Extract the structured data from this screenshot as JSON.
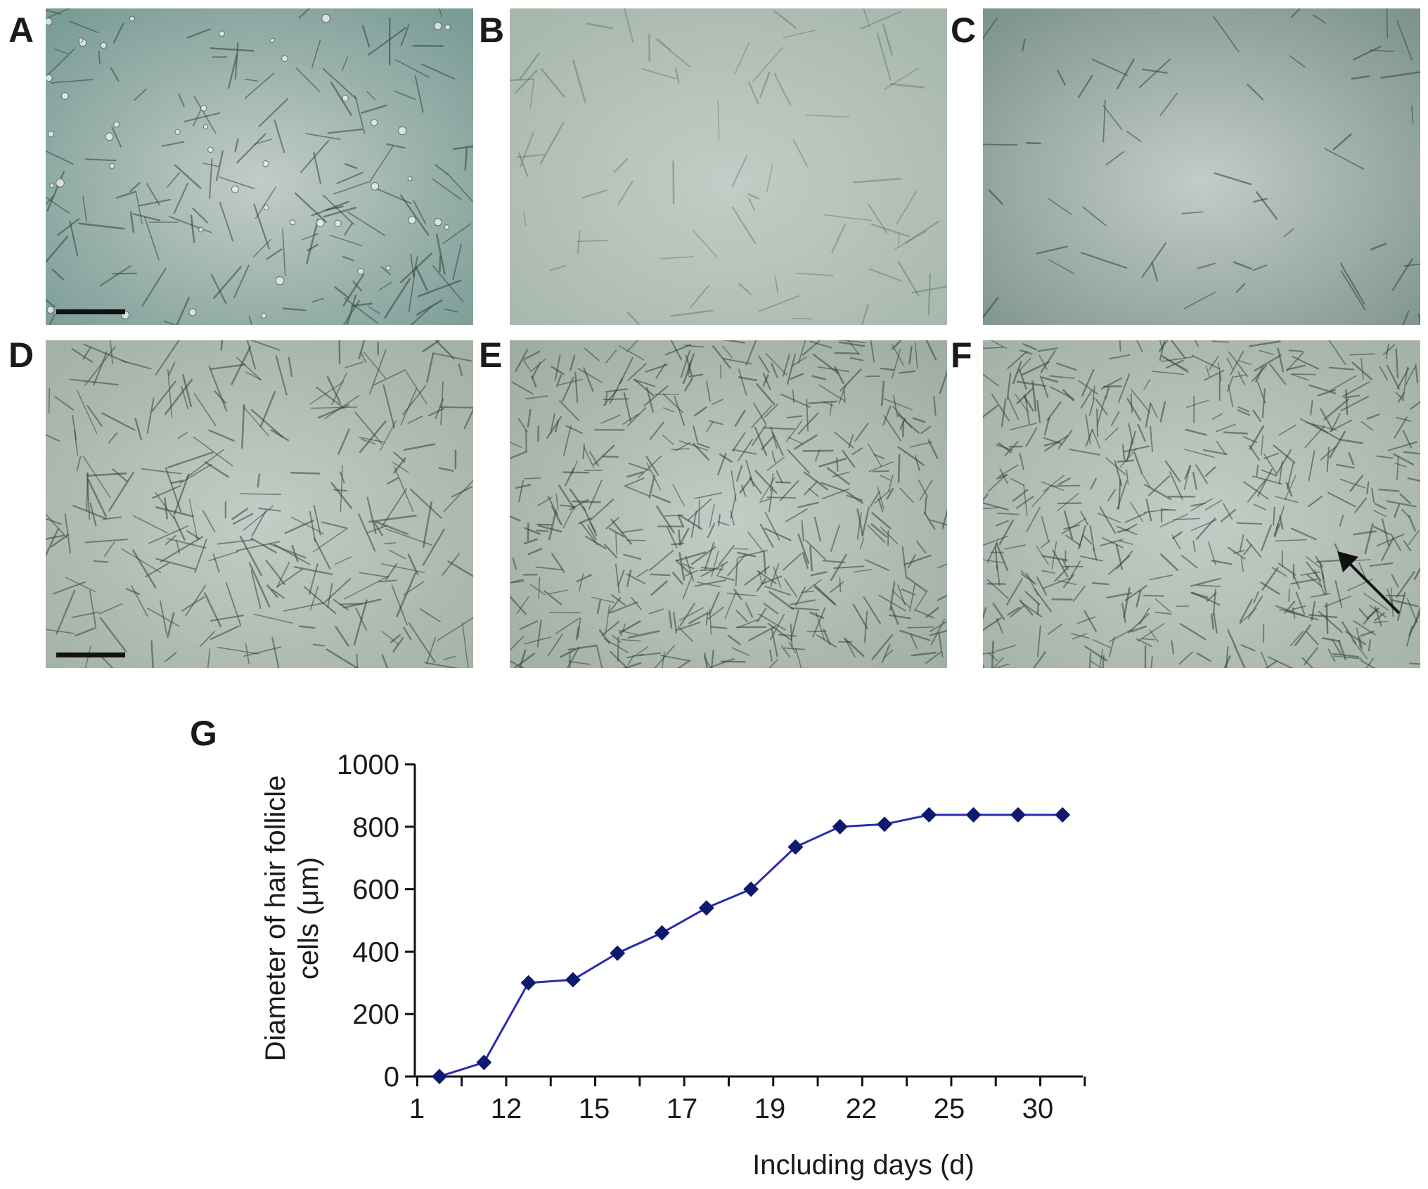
{
  "panels": [
    {
      "letter": "A",
      "scale_bar": true,
      "tint": "#7a9c96",
      "density": "sparse-rounded"
    },
    {
      "letter": "B",
      "scale_bar": false,
      "tint": "#a7b7ac",
      "density": "faint"
    },
    {
      "letter": "C",
      "scale_bar": false,
      "tint": "#7f948f",
      "density": "sparse"
    },
    {
      "letter": "D",
      "scale_bar": true,
      "tint": "#a3b1a6",
      "density": "medium"
    },
    {
      "letter": "E",
      "scale_bar": false,
      "tint": "#a0ada2",
      "density": "dense"
    },
    {
      "letter": "F",
      "scale_bar": false,
      "tint": "#a5b2a7",
      "density": "dense",
      "arrow": true
    }
  ],
  "chart_panel_letter": "G",
  "chart_data": {
    "type": "line",
    "xlabel": "Including days (d)",
    "ylabel_lines": [
      "Diameter of hair follicle",
      "cells (μm)"
    ],
    "x_tick_labels": [
      "1",
      "12",
      "15",
      "17",
      "19",
      "22",
      "25",
      "30"
    ],
    "ylim": [
      0,
      1000
    ],
    "y_ticks": [
      0,
      200,
      400,
      600,
      800,
      1000
    ],
    "grid": false,
    "series": [
      {
        "color": "#2b2bb0",
        "marker": "diamond",
        "marker_color": "#0d1a6e",
        "values": [
          0,
          45,
          300,
          310,
          395,
          460,
          540,
          600,
          735,
          800,
          808,
          838,
          838,
          838,
          838
        ]
      }
    ]
  }
}
